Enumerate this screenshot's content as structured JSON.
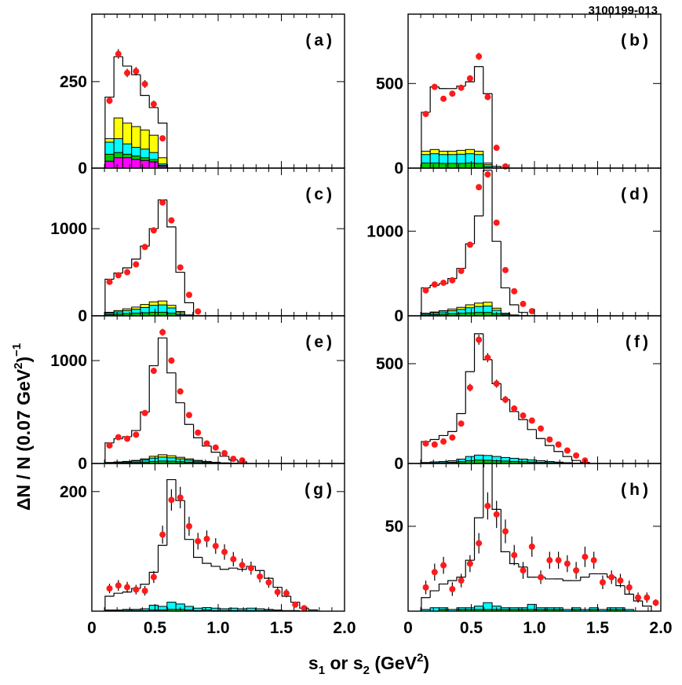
{
  "figure_id": "3100199-013",
  "ylabel": {
    "prefix": "ΔN / N (0.07 GeV",
    "sq": "2",
    "close": ")",
    "exp": "−1"
  },
  "xlabel": {
    "s": "s",
    "sub1": "1",
    "mid": " or s",
    "sub2": "2",
    "unit": " (GeV",
    "sq": "2",
    "close": ")"
  },
  "chart_data": [
    {
      "type": "histogram",
      "panel": "(a)",
      "xlim": [
        0,
        2.0
      ],
      "ylim": [
        0,
        445
      ],
      "yticks": [
        0,
        250
      ],
      "ytick_labels": [
        "0",
        "250"
      ],
      "xticks": [],
      "xtick_labels": [],
      "bin_edges": [
        0.105,
        0.175,
        0.245,
        0.315,
        0.385,
        0.455,
        0.525,
        0.595
      ],
      "mc_total": [
        205,
        322,
        295,
        270,
        210,
        175,
        130
      ],
      "stacks": [
        {
          "color": "#ffff00",
          "values": [
            85,
            145,
            130,
            120,
            110,
            95,
            30
          ]
        },
        {
          "color": "#00ffff",
          "values": [
            75,
            85,
            70,
            60,
            55,
            45,
            12
          ]
        },
        {
          "color": "#00cc00",
          "values": [
            40,
            45,
            40,
            35,
            30,
            25,
            8
          ]
        },
        {
          "color": "#ff00ff",
          "values": [
            20,
            30,
            30,
            25,
            22,
            18,
            5
          ]
        }
      ],
      "data_x": [
        0.14,
        0.21,
        0.28,
        0.35,
        0.42,
        0.49,
        0.56
      ],
      "data_y": [
        195,
        330,
        275,
        280,
        243,
        185,
        86
      ],
      "data_err": [
        10,
        14,
        12,
        12,
        11,
        10,
        7
      ]
    },
    {
      "type": "histogram",
      "panel": "(b)",
      "xlim": [
        0,
        2.0
      ],
      "ylim": [
        0,
        910
      ],
      "yticks": [
        0,
        500
      ],
      "ytick_labels": [
        "0",
        "500"
      ],
      "xticks": [],
      "xtick_labels": [],
      "bin_edges": [
        0.105,
        0.175,
        0.245,
        0.315,
        0.385,
        0.455,
        0.525,
        0.595,
        0.665,
        0.735
      ],
      "mc_total": [
        330,
        480,
        470,
        470,
        485,
        510,
        600,
        440,
        10
      ],
      "stacks": [
        {
          "color": "#ffff00",
          "values": [
            100,
            110,
            100,
            100,
            105,
            110,
            100,
            30,
            0
          ]
        },
        {
          "color": "#00ffff",
          "values": [
            80,
            85,
            80,
            80,
            82,
            85,
            80,
            20,
            0
          ]
        },
        {
          "color": "#00cc00",
          "values": [
            30,
            30,
            28,
            28,
            28,
            30,
            28,
            8,
            0
          ]
        }
      ],
      "data_x": [
        0.14,
        0.21,
        0.28,
        0.35,
        0.42,
        0.49,
        0.56,
        0.63,
        0.7,
        0.77
      ],
      "data_y": [
        320,
        480,
        410,
        440,
        475,
        530,
        660,
        420,
        120,
        10
      ],
      "data_err": [
        15,
        18,
        17,
        17,
        18,
        19,
        21,
        17,
        9,
        3
      ]
    },
    {
      "type": "histogram",
      "panel": "(c)",
      "xlim": [
        0,
        2.0
      ],
      "ylim": [
        0,
        1695
      ],
      "yticks": [
        0,
        1000
      ],
      "ytick_labels": [
        "0",
        "1000"
      ],
      "xticks": [],
      "xtick_labels": [],
      "bin_edges": [
        0.105,
        0.175,
        0.245,
        0.315,
        0.385,
        0.455,
        0.525,
        0.595,
        0.665,
        0.735,
        0.805
      ],
      "mc_total": [
        420,
        490,
        550,
        650,
        800,
        1000,
        1330,
        1020,
        500,
        150
      ],
      "stacks": [
        {
          "color": "#ffff00",
          "values": [
            40,
            60,
            80,
            100,
            130,
            160,
            170,
            120,
            50,
            10
          ]
        },
        {
          "color": "#00ffff",
          "values": [
            30,
            45,
            60,
            75,
            95,
            120,
            125,
            90,
            35,
            6
          ]
        },
        {
          "color": "#00cc00",
          "values": [
            15,
            20,
            25,
            30,
            35,
            40,
            40,
            30,
            12,
            3
          ]
        }
      ],
      "data_x": [
        0.14,
        0.21,
        0.28,
        0.35,
        0.42,
        0.49,
        0.56,
        0.63,
        0.7,
        0.77,
        0.84
      ],
      "data_y": [
        390,
        465,
        500,
        590,
        790,
        980,
        1300,
        1095,
        555,
        240,
        50
      ],
      "data_err": [
        18,
        20,
        21,
        23,
        26,
        29,
        33,
        31,
        22,
        14,
        7
      ]
    },
    {
      "type": "histogram",
      "panel": "(d)",
      "xlim": [
        0,
        2.0
      ],
      "ylim": [
        0,
        1745
      ],
      "yticks": [
        0,
        1000
      ],
      "ytick_labels": [
        "0",
        "1000"
      ],
      "xticks": [],
      "xtick_labels": [],
      "bin_edges": [
        0.105,
        0.175,
        0.245,
        0.315,
        0.385,
        0.455,
        0.525,
        0.595,
        0.665,
        0.735,
        0.805,
        0.875,
        0.945
      ],
      "mc_total": [
        330,
        360,
        380,
        440,
        560,
        850,
        1180,
        1720,
        880,
        330,
        130,
        40
      ],
      "stacks": [
        {
          "color": "#ffff00",
          "values": [
            30,
            45,
            60,
            80,
            100,
            130,
            150,
            160,
            90,
            30,
            10,
            2
          ]
        },
        {
          "color": "#00ffff",
          "values": [
            25,
            35,
            45,
            60,
            75,
            95,
            110,
            115,
            65,
            20,
            6,
            1
          ]
        },
        {
          "color": "#00cc00",
          "values": [
            10,
            15,
            20,
            25,
            30,
            35,
            40,
            40,
            25,
            8,
            3,
            0
          ]
        }
      ],
      "data_x": [
        0.14,
        0.21,
        0.28,
        0.35,
        0.42,
        0.49,
        0.56,
        0.63,
        0.7,
        0.77,
        0.84,
        0.91,
        0.98
      ],
      "data_y": [
        300,
        370,
        390,
        420,
        530,
        840,
        1520,
        1670,
        1100,
        540,
        290,
        140,
        55
      ],
      "data_err": [
        15,
        17,
        18,
        19,
        21,
        26,
        35,
        37,
        30,
        21,
        15,
        11,
        7
      ]
    },
    {
      "type": "histogram",
      "panel": "(e)",
      "xlim": [
        0,
        2.0
      ],
      "ylim": [
        0,
        1435
      ],
      "yticks": [
        0,
        1000
      ],
      "ytick_labels": [
        "0",
        "1000"
      ],
      "xticks": [],
      "xtick_labels": [],
      "bin_edges": [
        0.105,
        0.175,
        0.245,
        0.315,
        0.385,
        0.455,
        0.525,
        0.595,
        0.665,
        0.735,
        0.805,
        0.875,
        0.945,
        1.015,
        1.085,
        1.155,
        1.225
      ],
      "mc_total": [
        200,
        240,
        260,
        320,
        500,
        950,
        1220,
        880,
        590,
        380,
        250,
        170,
        110,
        70,
        35,
        15
      ],
      "stacks": [
        {
          "color": "#ffff00",
          "values": [
            10,
            15,
            20,
            30,
            45,
            70,
            85,
            75,
            60,
            45,
            30,
            20,
            12,
            6,
            3,
            1
          ]
        },
        {
          "color": "#00ffff",
          "values": [
            8,
            12,
            16,
            24,
            35,
            52,
            62,
            55,
            45,
            33,
            22,
            14,
            8,
            4,
            2,
            0
          ]
        },
        {
          "color": "#00cc00",
          "values": [
            3,
            5,
            7,
            10,
            14,
            20,
            24,
            22,
            18,
            13,
            9,
            6,
            3,
            2,
            1,
            0
          ]
        }
      ],
      "data_x": [
        0.14,
        0.21,
        0.28,
        0.35,
        0.42,
        0.49,
        0.56,
        0.63,
        0.7,
        0.77,
        0.84,
        0.91,
        0.98,
        1.05,
        1.12,
        1.19
      ],
      "data_y": [
        175,
        255,
        240,
        280,
        490,
        900,
        1275,
        1000,
        700,
        470,
        300,
        195,
        155,
        100,
        45,
        30
      ],
      "data_err": [
        12,
        15,
        15,
        16,
        21,
        29,
        34,
        30,
        25,
        21,
        17,
        13,
        12,
        10,
        7,
        5
      ]
    },
    {
      "type": "histogram",
      "panel": "(f)",
      "xlim": [
        0,
        2.0
      ],
      "ylim": [
        0,
        740
      ],
      "yticks": [
        0,
        500
      ],
      "ytick_labels": [
        "0",
        "500"
      ],
      "xticks": [],
      "xtick_labels": [],
      "bin_edges": [
        0.105,
        0.175,
        0.245,
        0.315,
        0.385,
        0.455,
        0.525,
        0.595,
        0.665,
        0.735,
        0.805,
        0.875,
        0.945,
        1.015,
        1.085,
        1.155,
        1.225,
        1.295,
        1.365,
        1.435
      ],
      "mc_total": [
        110,
        120,
        140,
        160,
        250,
        460,
        650,
        520,
        400,
        320,
        260,
        220,
        170,
        125,
        90,
        60,
        35,
        15,
        5
      ],
      "stacks": [
        {
          "color": "#00ffff",
          "values": [
            5,
            8,
            10,
            14,
            22,
            35,
            42,
            40,
            35,
            30,
            26,
            22,
            18,
            14,
            10,
            7,
            4,
            2,
            1
          ]
        },
        {
          "color": "#00cc00",
          "values": [
            2,
            3,
            4,
            6,
            9,
            14,
            17,
            16,
            14,
            12,
            10,
            9,
            7,
            5,
            4,
            3,
            1,
            1,
            0
          ]
        }
      ],
      "data_x": [
        0.14,
        0.21,
        0.28,
        0.35,
        0.42,
        0.49,
        0.56,
        0.63,
        0.7,
        0.77,
        0.84,
        0.91,
        0.98,
        1.05,
        1.12,
        1.19,
        1.26,
        1.33,
        1.4
      ],
      "data_y": [
        100,
        95,
        110,
        130,
        200,
        380,
        620,
        530,
        400,
        320,
        275,
        240,
        215,
        175,
        120,
        95,
        65,
        40,
        15
      ],
      "data_err": [
        9,
        9,
        10,
        11,
        14,
        19,
        25,
        23,
        20,
        18,
        16,
        15,
        14,
        13,
        11,
        10,
        8,
        6,
        4
      ]
    },
    {
      "type": "histogram",
      "panel": "(g)",
      "xlim": [
        0,
        2.0
      ],
      "ylim": [
        0,
        247
      ],
      "yticks": [
        200
      ],
      "ytick_labels": [
        "200"
      ],
      "xticks": [
        0,
        0.5,
        1.0,
        1.5,
        2.0
      ],
      "xtick_labels": [
        "0",
        "0.5",
        "1.0",
        "1.5",
        "2.0"
      ],
      "bin_edges": [
        0.105,
        0.175,
        0.245,
        0.315,
        0.385,
        0.455,
        0.525,
        0.595,
        0.665,
        0.735,
        0.805,
        0.875,
        0.945,
        1.015,
        1.085,
        1.155,
        1.225,
        1.295,
        1.365,
        1.435,
        1.505,
        1.575,
        1.645,
        1.715,
        1.785
      ],
      "mc_total": [
        25,
        30,
        32,
        38,
        45,
        65,
        110,
        220,
        185,
        120,
        90,
        80,
        75,
        70,
        72,
        70,
        75,
        68,
        55,
        40,
        25,
        15,
        5,
        2
      ],
      "stacks": [
        {
          "color": "#00ffff",
          "values": [
            2,
            2,
            3,
            3,
            4,
            10,
            8,
            15,
            12,
            8,
            5,
            6,
            5,
            4,
            5,
            4,
            5,
            4,
            3,
            2,
            1,
            1,
            0,
            0
          ]
        },
        {
          "color": "#00cc00",
          "values": [
            1,
            1,
            1,
            1,
            1,
            2,
            2,
            3,
            3,
            2,
            1,
            2,
            1,
            1,
            1,
            1,
            1,
            1,
            1,
            1,
            0,
            0,
            0,
            0
          ]
        }
      ],
      "data_x": [
        0.14,
        0.21,
        0.28,
        0.35,
        0.42,
        0.49,
        0.56,
        0.63,
        0.7,
        0.77,
        0.84,
        0.91,
        0.98,
        1.05,
        1.12,
        1.19,
        1.26,
        1.33,
        1.4,
        1.47,
        1.54,
        1.61,
        1.68
      ],
      "data_y": [
        38,
        43,
        40,
        36,
        34,
        57,
        128,
        186,
        190,
        142,
        117,
        121,
        109,
        99,
        87,
        77,
        72,
        58,
        48,
        32,
        30,
        11,
        5
      ],
      "data_err": [
        8,
        9,
        9,
        8,
        8,
        10,
        15,
        18,
        18,
        16,
        14,
        14,
        13,
        13,
        12,
        11,
        11,
        10,
        9,
        8,
        7,
        4,
        3
      ]
    },
    {
      "type": "histogram",
      "panel": "(h)",
      "xlim": [
        0,
        2.0
      ],
      "ylim": [
        0,
        87
      ],
      "yticks": [
        50
      ],
      "ytick_labels": [
        "50"
      ],
      "xticks": [
        0,
        0.5,
        1.0,
        1.5,
        2.0
      ],
      "xtick_labels": [
        "0",
        "0.5",
        "1.0",
        "1.5",
        "2.0"
      ],
      "bin_edges": [
        0.105,
        0.175,
        0.245,
        0.315,
        0.385,
        0.455,
        0.525,
        0.595,
        0.665,
        0.735,
        0.805,
        0.875,
        0.945,
        1.015,
        1.085,
        1.155,
        1.225,
        1.295,
        1.365,
        1.435,
        1.505,
        1.575,
        1.645,
        1.715,
        1.785,
        1.855,
        1.925
      ],
      "mc_total": [
        8,
        12,
        16,
        18,
        20,
        30,
        55,
        87,
        60,
        35,
        28,
        26,
        20,
        20,
        19,
        19,
        18,
        18,
        20,
        22,
        22,
        20,
        15,
        10,
        6,
        3
      ],
      "stacks": [
        {
          "color": "#00ffff",
          "values": [
            1,
            2,
            2,
            1,
            2,
            2,
            3,
            5,
            3,
            2,
            2,
            2,
            4,
            2,
            2,
            2,
            1,
            2,
            1,
            2,
            1,
            2,
            2,
            1,
            0,
            0
          ]
        },
        {
          "color": "#00cc00",
          "values": [
            0,
            0,
            1,
            0,
            1,
            1,
            1,
            1,
            1,
            1,
            1,
            1,
            1,
            1,
            1,
            1,
            0,
            1,
            0,
            1,
            0,
            1,
            1,
            0,
            0,
            0
          ]
        }
      ],
      "data_x": [
        0.14,
        0.21,
        0.28,
        0.35,
        0.42,
        0.49,
        0.56,
        0.63,
        0.7,
        0.77,
        0.84,
        0.91,
        0.98,
        1.05,
        1.12,
        1.19,
        1.26,
        1.33,
        1.4,
        1.47,
        1.54,
        1.61,
        1.68,
        1.75,
        1.82,
        1.89,
        1.96
      ],
      "data_y": [
        14,
        23,
        27,
        13,
        18,
        28,
        40,
        62,
        57,
        47,
        33,
        24,
        38,
        20,
        30,
        30,
        28,
        24,
        32,
        30,
        17,
        20,
        18,
        14,
        8,
        8,
        5
      ],
      "data_err": [
        4,
        5,
        5,
        4,
        4,
        5,
        6,
        8,
        8,
        7,
        6,
        5,
        6,
        4,
        5,
        5,
        5,
        5,
        6,
        5,
        4,
        4,
        4,
        4,
        3,
        3,
        2
      ]
    }
  ]
}
